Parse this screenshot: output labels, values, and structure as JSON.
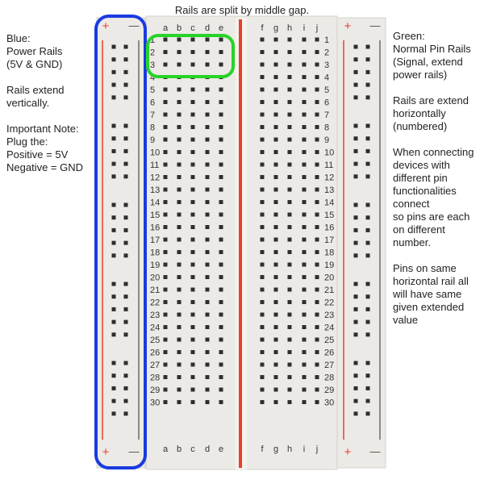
{
  "title": "Rails are split by middle gap.",
  "left_notes": [
    "Blue:",
    "Power Rails",
    "(5V & GND)",
    "",
    "Rails extend",
    "vertically.",
    "",
    "Important Note:",
    "Plug the:",
    "Positive = 5V",
    "Negative = GND"
  ],
  "right_notes": [
    "Green:",
    "Normal Pin Rails",
    "(Signal, extend",
    "power rails)",
    "",
    "Rails are extend",
    "horizontally",
    "(numbered)",
    "",
    "When connecting",
    "devices with",
    "different pin",
    "functionalities",
    "connect",
    "so pins are each",
    "on different",
    "number.",
    "",
    "Pins on same",
    "horizontal rail all",
    "will have same",
    "given extended",
    "value"
  ],
  "breadboard": {
    "columns_left": [
      "a",
      "b",
      "c",
      "d",
      "e"
    ],
    "columns_right": [
      "f",
      "g",
      "h",
      "i",
      "j"
    ],
    "rows": [
      "1",
      "2",
      "3",
      "4",
      "5",
      "6",
      "7",
      "8",
      "9",
      "10",
      "11",
      "12",
      "13",
      "14",
      "15",
      "16",
      "17",
      "18",
      "19",
      "20",
      "21",
      "22",
      "23",
      "24",
      "25",
      "26",
      "27",
      "28",
      "29",
      "30"
    ],
    "rail_plus": "+",
    "rail_minus": "—"
  },
  "colors": {
    "board": "#eceae6",
    "hole": "#2e2e2e",
    "red_line": "#e8402a",
    "blue_outline": "#1a3be0",
    "green_outline": "#27d327"
  }
}
